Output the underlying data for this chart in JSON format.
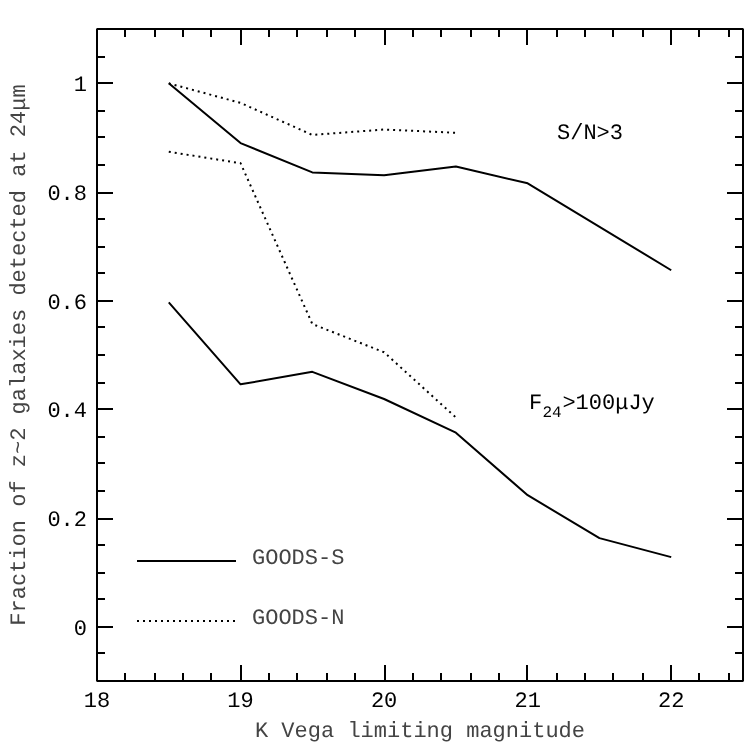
{
  "chart_data": {
    "type": "line",
    "xlabel": "K Vega limiting magnitude",
    "ylabel": "Fraction of z~2 galaxies detected at 24μm",
    "x": [
      18.5,
      19,
      19.5,
      20,
      20.5,
      21,
      21.5,
      22
    ],
    "series": [
      {
        "name": "GOODS-S",
        "color": "#000000",
        "line_style": "solid",
        "values": [
          1.0,
          0.89,
          0.836,
          0.831,
          0.847,
          0.816,
          null,
          0.656
        ]
      },
      {
        "color": "#000000",
        "line_style": "solid",
        "values": [
          0.597,
          0.446,
          0.469,
          0.419,
          0.357,
          0.242,
          0.163,
          0.128
        ]
      },
      {
        "name": "GOODS-N",
        "color": "#000000",
        "line_style": "dotted",
        "values": [
          1.0,
          0.964,
          0.905,
          0.915,
          0.909,
          null,
          null,
          null
        ]
      },
      {
        "color": "#000000",
        "line_style": "dotted",
        "values": [
          0.874,
          0.853,
          0.557,
          0.505,
          0.385,
          null,
          null,
          null
        ]
      }
    ],
    "xlim": [
      18,
      22.5
    ],
    "ylim": [
      -0.1,
      1.1
    ],
    "xticks": [
      18,
      19,
      20,
      21,
      22
    ],
    "yticks": [
      0,
      0.2,
      0.4,
      0.6,
      0.8,
      1
    ],
    "annotations": [
      "S/N>3",
      "F$_{24}$>100μJy"
    ],
    "legend": "bottom left",
    "grid": false,
    "marker": "none"
  }
}
